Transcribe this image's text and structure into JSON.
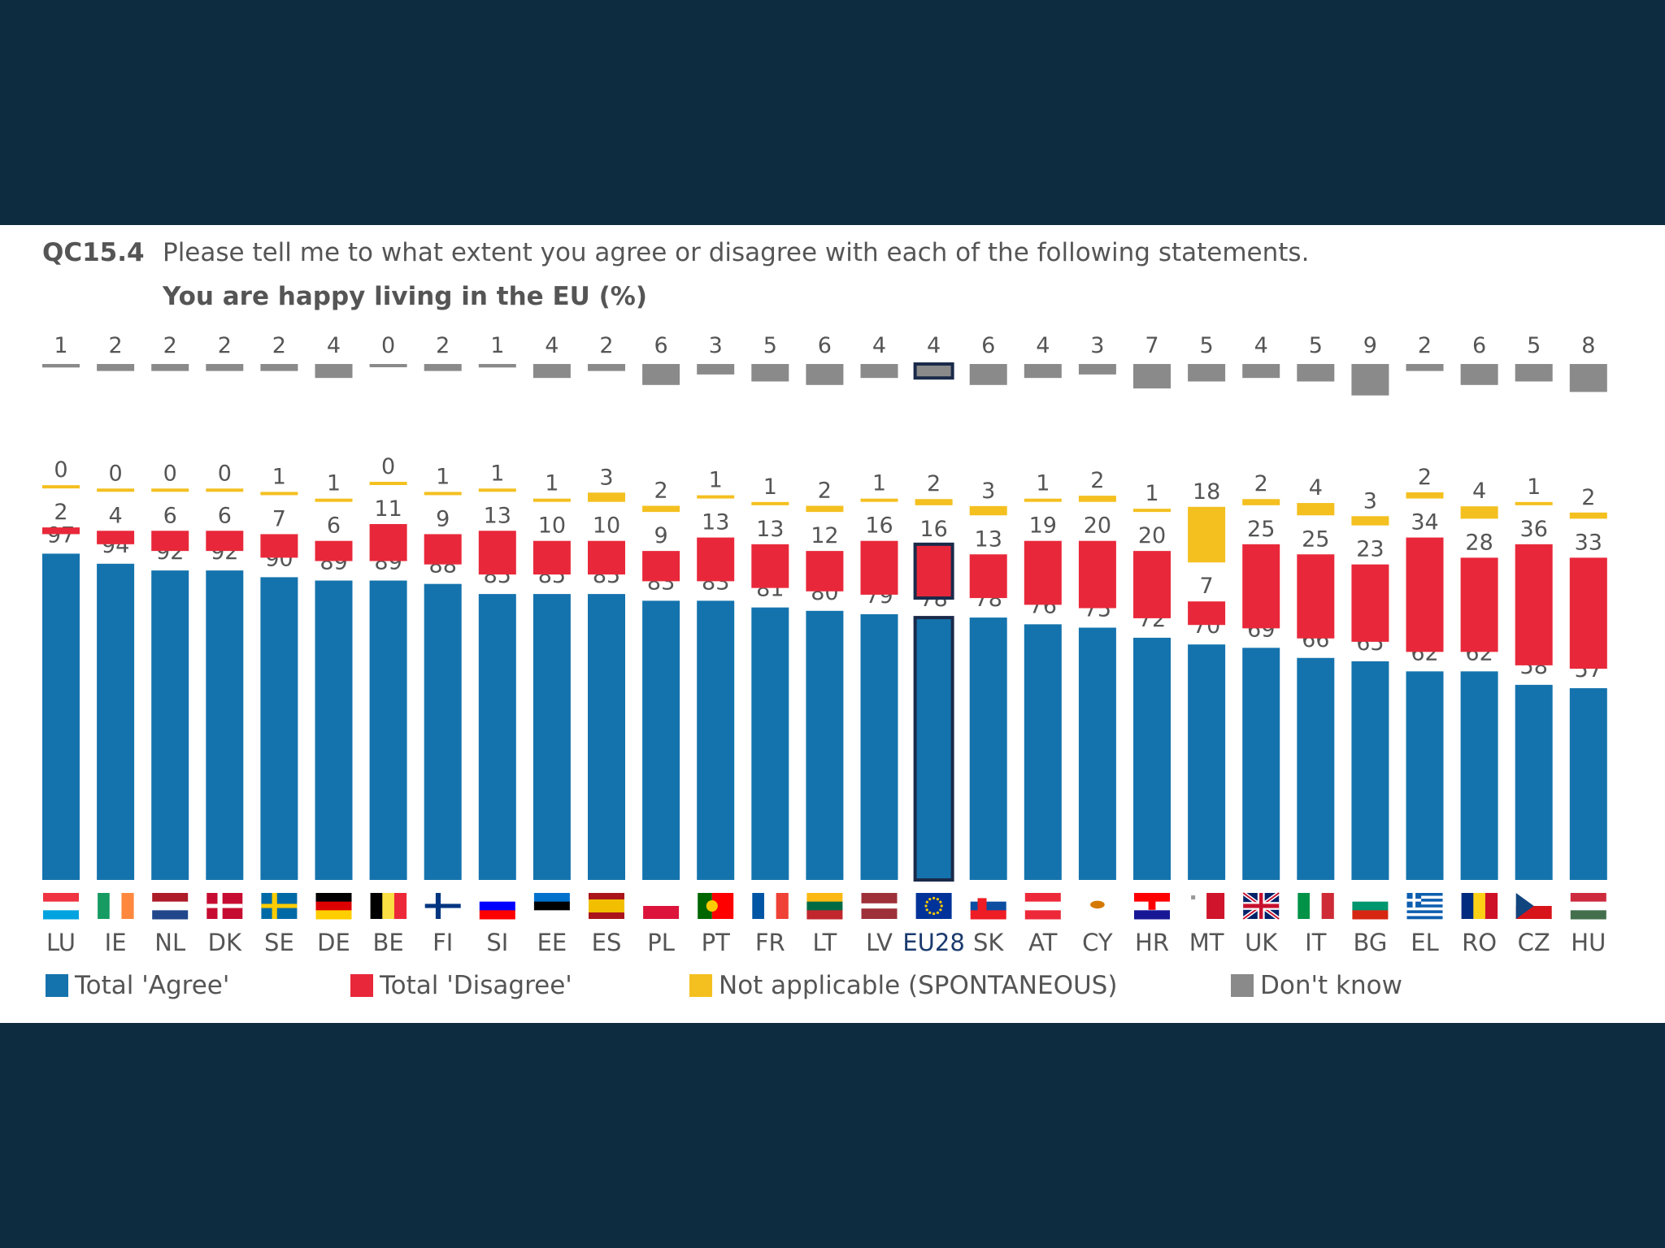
{
  "colors": {
    "background": "#0d2c40",
    "agree": "#1473ad",
    "disagree": "#e8283a",
    "not_applicable": "#f4c020",
    "dont_know": "#8a8a8a"
  },
  "header": {
    "code": "QC15.4",
    "question": "Please tell me to what extent you agree or disagree with each of the following statements.",
    "subtitle": "You are happy living in the EU (%)"
  },
  "legend": [
    {
      "label": "Total 'Agree'",
      "color": "#1473ad"
    },
    {
      "label": "Total 'Disagree'",
      "color": "#e8283a"
    },
    {
      "label": "Not applicable (SPONTANEOUS)",
      "color": "#f4c020"
    },
    {
      "label": "Don't know",
      "color": "#8a8a8a"
    }
  ],
  "chart_data": {
    "type": "bar",
    "categories": [
      "LU",
      "IE",
      "NL",
      "DK",
      "SE",
      "DE",
      "BE",
      "FI",
      "SI",
      "EE",
      "ES",
      "PL",
      "PT",
      "FR",
      "LT",
      "LV",
      "EU28",
      "SK",
      "AT",
      "CY",
      "HR",
      "MT",
      "UK",
      "IT",
      "BG",
      "EL",
      "RO",
      "CZ",
      "HU"
    ],
    "highlight_category": "EU28",
    "series": [
      {
        "name": "Total 'Agree'",
        "values": [
          97,
          94,
          92,
          92,
          90,
          89,
          89,
          88,
          85,
          85,
          85,
          83,
          83,
          81,
          80,
          79,
          78,
          78,
          76,
          75,
          72,
          70,
          69,
          66,
          65,
          62,
          62,
          58,
          57
        ]
      },
      {
        "name": "Total 'Disagree'",
        "values": [
          2,
          4,
          6,
          6,
          7,
          6,
          11,
          9,
          13,
          10,
          10,
          9,
          13,
          13,
          12,
          16,
          16,
          13,
          19,
          20,
          20,
          7,
          25,
          25,
          23,
          34,
          28,
          36,
          33
        ]
      },
      {
        "name": "Not applicable (SPONTANEOUS)",
        "values": [
          0,
          0,
          0,
          0,
          1,
          1,
          0,
          1,
          1,
          1,
          3,
          2,
          1,
          1,
          2,
          1,
          2,
          3,
          1,
          2,
          1,
          18,
          2,
          4,
          3,
          2,
          4,
          1,
          2
        ]
      },
      {
        "name": "Don't know",
        "values": [
          1,
          2,
          2,
          2,
          2,
          4,
          0,
          2,
          1,
          4,
          2,
          6,
          3,
          5,
          6,
          4,
          4,
          6,
          4,
          3,
          7,
          5,
          4,
          5,
          9,
          2,
          6,
          5,
          8
        ]
      }
    ],
    "flag_icons": [
      "luxembourg-flag-icon",
      "ireland-flag-icon",
      "netherlands-flag-icon",
      "denmark-flag-icon",
      "sweden-flag-icon",
      "germany-flag-icon",
      "belgium-flag-icon",
      "finland-flag-icon",
      "slovenia-flag-icon",
      "estonia-flag-icon",
      "spain-flag-icon",
      "poland-flag-icon",
      "portugal-flag-icon",
      "france-flag-icon",
      "lithuania-flag-icon",
      "latvia-flag-icon",
      "eu-flag-icon",
      "slovakia-flag-icon",
      "austria-flag-icon",
      "cyprus-flag-icon",
      "croatia-flag-icon",
      "malta-flag-icon",
      "uk-flag-icon",
      "italy-flag-icon",
      "bulgaria-flag-icon",
      "greece-flag-icon",
      "romania-flag-icon",
      "czechia-flag-icon",
      "hungary-flag-icon"
    ]
  }
}
